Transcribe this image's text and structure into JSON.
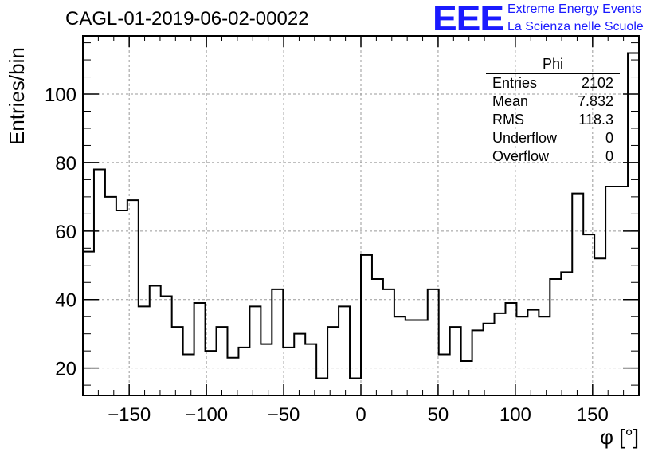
{
  "title": "CAGL-01-2019-06-02-00022",
  "logo": {
    "mark": "EEE",
    "line1": "Extreme Energy Events",
    "line2": "La Scienza nelle Scuole",
    "color": "#1a1aff"
  },
  "stats_box": {
    "title": "Phi",
    "rows": [
      {
        "label": "Entries",
        "value": "2102"
      },
      {
        "label": "Mean",
        "value": "7.832"
      },
      {
        "label": "RMS",
        "value": "118.3"
      },
      {
        "label": "Underflow",
        "value": "0"
      },
      {
        "label": "Overflow",
        "value": "0"
      }
    ]
  },
  "chart_data": {
    "type": "bar",
    "style": "step-histogram",
    "title": "CAGL-01-2019-06-02-00022",
    "xlabel": "φ [°]",
    "ylabel": "Entries/bin",
    "xlim": [
      -180,
      180
    ],
    "ylim": [
      12,
      117
    ],
    "bin_width": 7.2,
    "x_ticks": [
      "−150",
      "−100",
      "−50",
      "0",
      "50",
      "100",
      "150"
    ],
    "x_tick_values": [
      -150,
      -100,
      -50,
      0,
      50,
      100,
      150
    ],
    "y_ticks": [
      "20",
      "40",
      "60",
      "80",
      "100"
    ],
    "y_tick_values": [
      20,
      40,
      60,
      80,
      100
    ],
    "grid": true,
    "values": [
      54,
      78,
      70,
      66,
      69,
      38,
      44,
      41,
      32,
      24,
      39,
      25,
      32,
      23,
      26,
      38,
      27,
      43,
      26,
      30,
      27,
      17,
      32,
      38,
      17,
      53,
      46,
      43,
      35,
      34,
      34,
      43,
      24,
      32,
      22,
      31,
      33,
      36,
      39,
      35,
      37,
      35,
      46,
      48,
      71,
      59,
      52,
      73,
      73,
      112
    ]
  }
}
